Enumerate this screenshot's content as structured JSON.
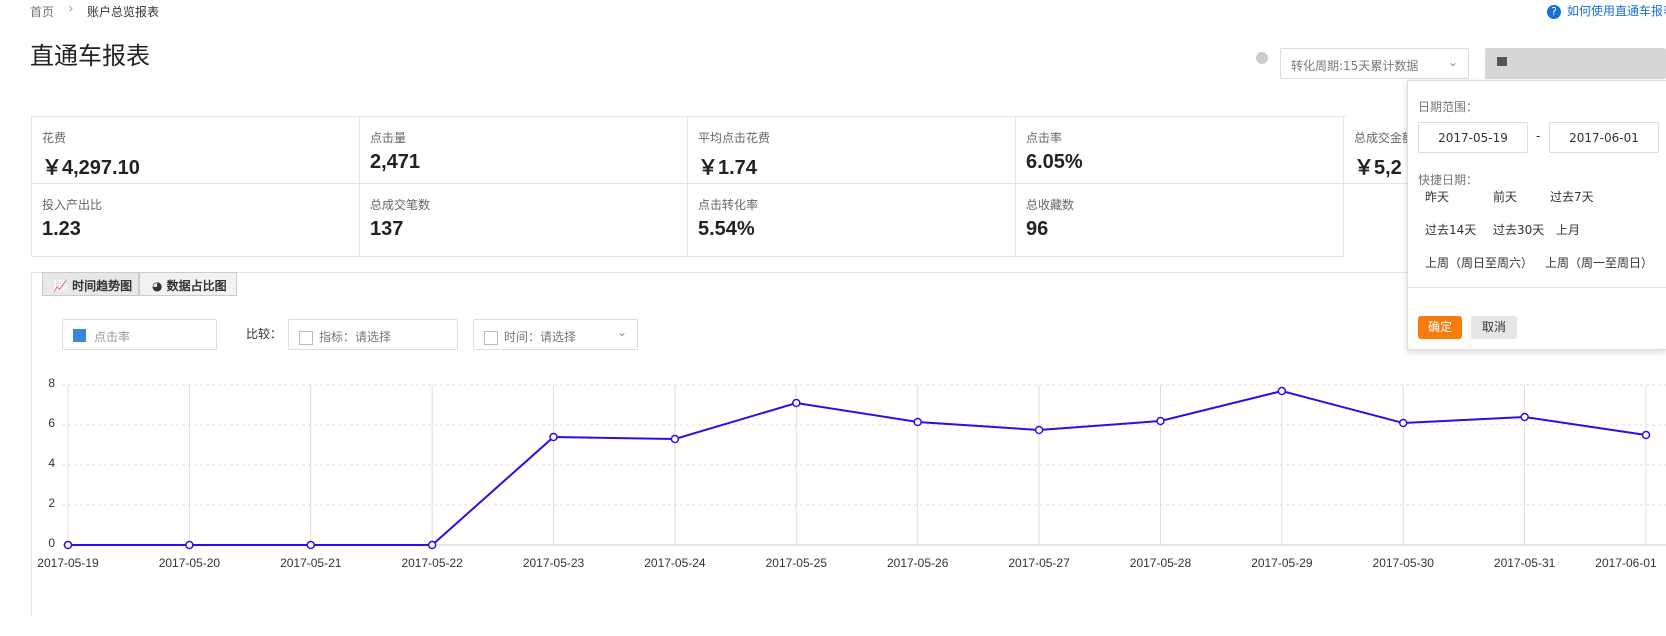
{
  "breadcrumb": [
    "首页",
    "账户总览报表"
  ],
  "help_link": "如何使用直通车报表",
  "title": "直通车报表",
  "period_select": "转化周期:15天累计数据",
  "metrics": [
    {
      "label": "花费",
      "value": "￥4,297.10"
    },
    {
      "label": "点击量",
      "value": "2,471"
    },
    {
      "label": "平均点击花费",
      "value": "￥1.74"
    },
    {
      "label": "点击率",
      "value": "6.05%"
    },
    {
      "label": "总成交金额",
      "value": "￥5,2"
    },
    {
      "label": "投入产出比",
      "value": "1.23"
    },
    {
      "label": "总成交笔数",
      "value": "137"
    },
    {
      "label": "点击转化率",
      "value": "5.54%"
    },
    {
      "label": "总收藏数",
      "value": "96"
    }
  ],
  "tabs": [
    "时间趋势图",
    "数据占比图"
  ],
  "filters": {
    "compare_label": "比较：",
    "metric": "指标：",
    "metric_placeholder": "请选择",
    "time": "时间：",
    "time_placeholder": "请选择"
  },
  "date_popup": {
    "range_label": "日期范围：",
    "start": "2017-05-19",
    "separator": "-",
    "end": "2017-06-01",
    "quick_label": "快捷日期：",
    "options": [
      "昨天",
      "前天",
      "过去7天",
      "过去14天",
      "过去30天",
      "上月",
      "上周（周日至周六）",
      "上周（周一至周日）"
    ],
    "confirm": "确定",
    "cancel": "取消"
  },
  "chart_data": {
    "type": "line",
    "categories": [
      "2017-05-19",
      "2017-05-20",
      "2017-05-21",
      "2017-05-22",
      "2017-05-23",
      "2017-05-24",
      "2017-05-25",
      "2017-05-26",
      "2017-05-27",
      "2017-05-28",
      "2017-05-29",
      "2017-05-30",
      "2017-05-31",
      "2017-06-01"
    ],
    "series": [
      {
        "name": "点击率",
        "color": "#2a10e8",
        "values": [
          0,
          0,
          0,
          0,
          5.4,
          5.3,
          7.1,
          6.15,
          5.75,
          6.2,
          7.7,
          6.1,
          6.4,
          5.5
        ]
      }
    ],
    "ylim": [
      0,
      8
    ],
    "yticks": [
      0,
      2,
      4,
      6,
      8
    ],
    "grid": true
  }
}
